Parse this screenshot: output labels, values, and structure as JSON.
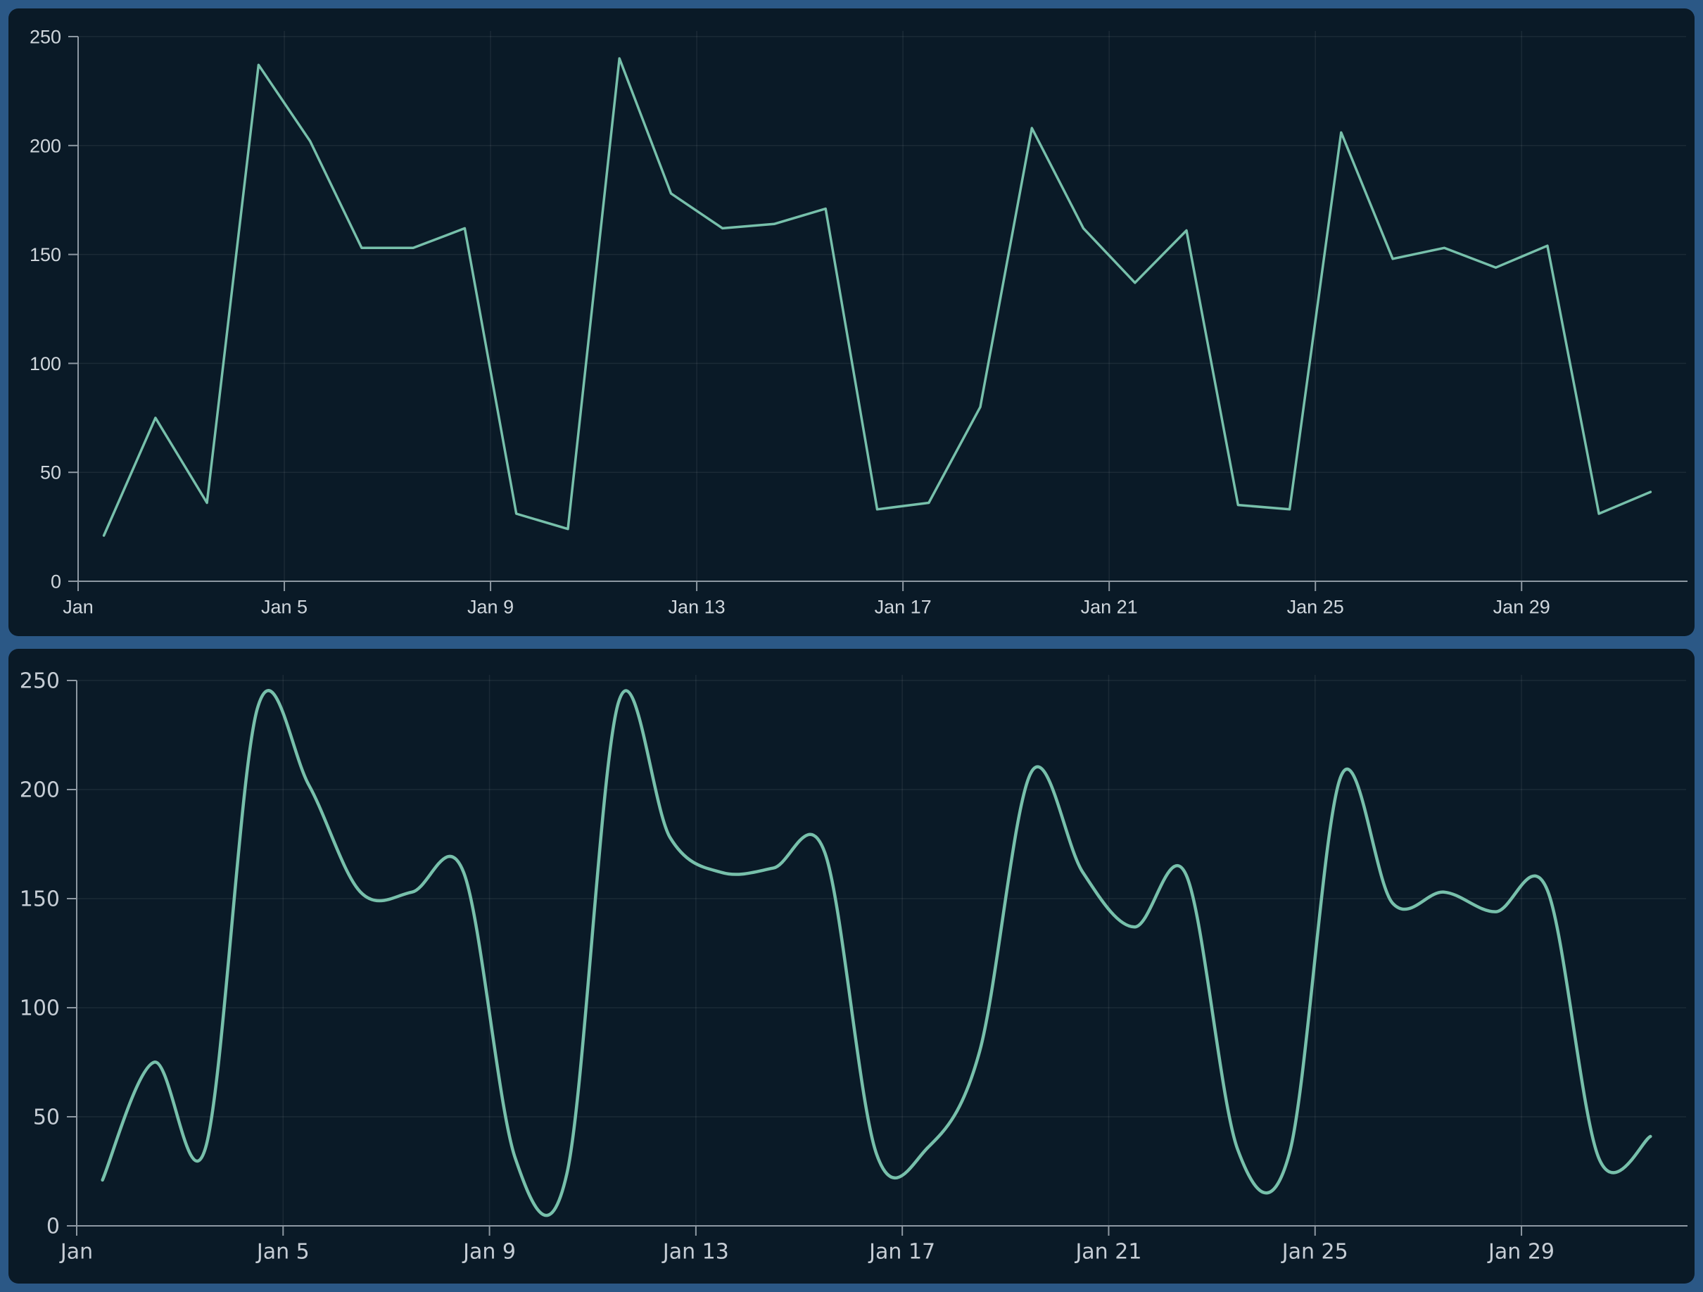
{
  "page": {
    "frame_color": "#2b5886",
    "card_background": "#0a1a27"
  },
  "chart_data": [
    {
      "type": "line",
      "interpolation": "linear",
      "title": "",
      "xlabel": "",
      "ylabel": "",
      "x": [
        "Jan 1",
        "Jan 2",
        "Jan 3",
        "Jan 4",
        "Jan 5",
        "Jan 6",
        "Jan 7",
        "Jan 8",
        "Jan 9",
        "Jan 10",
        "Jan 11",
        "Jan 12",
        "Jan 13",
        "Jan 14",
        "Jan 15",
        "Jan 16",
        "Jan 17",
        "Jan 18",
        "Jan 19",
        "Jan 20",
        "Jan 21",
        "Jan 22",
        "Jan 23",
        "Jan 24",
        "Jan 25",
        "Jan 26",
        "Jan 27",
        "Jan 28",
        "Jan 29",
        "Jan 30",
        "Jan 31"
      ],
      "values": [
        21,
        75,
        36,
        237,
        202,
        153,
        153,
        162,
        31,
        24,
        240,
        178,
        162,
        164,
        171,
        33,
        36,
        80,
        208,
        162,
        137,
        161,
        35,
        33,
        206,
        148,
        153,
        144,
        154,
        31,
        41
      ],
      "x_tick_days": [
        1,
        5,
        9,
        13,
        17,
        21,
        25,
        29
      ],
      "x_tick_labels": [
        "Jan",
        "Jan 5",
        "Jan 9",
        "Jan 13",
        "Jan 17",
        "Jan 21",
        "Jan 25",
        "Jan 29"
      ],
      "y_ticks": [
        0,
        50,
        100,
        150,
        200,
        250
      ],
      "ylim": [
        0,
        250
      ],
      "grid": true,
      "legend": null,
      "line_color": "#77c0ab",
      "axis_color": "#8e99a3",
      "grid_color": "rgba(255,255,255,0.07)",
      "label_color": "#cfd6dc"
    },
    {
      "type": "line",
      "interpolation": "smooth",
      "title": "",
      "xlabel": "",
      "ylabel": "",
      "x": [
        "Jan 1",
        "Jan 2",
        "Jan 3",
        "Jan 4",
        "Jan 5",
        "Jan 6",
        "Jan 7",
        "Jan 8",
        "Jan 9",
        "Jan 10",
        "Jan 11",
        "Jan 12",
        "Jan 13",
        "Jan 14",
        "Jan 15",
        "Jan 16",
        "Jan 17",
        "Jan 18",
        "Jan 19",
        "Jan 20",
        "Jan 21",
        "Jan 22",
        "Jan 23",
        "Jan 24",
        "Jan 25",
        "Jan 26",
        "Jan 27",
        "Jan 28",
        "Jan 29",
        "Jan 30",
        "Jan 31"
      ],
      "values": [
        21,
        75,
        36,
        237,
        202,
        153,
        153,
        162,
        31,
        24,
        240,
        178,
        162,
        164,
        171,
        33,
        36,
        80,
        208,
        162,
        137,
        161,
        35,
        33,
        206,
        148,
        153,
        144,
        154,
        31,
        41
      ],
      "x_tick_days": [
        1,
        5,
        9,
        13,
        17,
        21,
        25,
        29
      ],
      "x_tick_labels": [
        "Jan",
        "Jan 5",
        "Jan 9",
        "Jan 13",
        "Jan 17",
        "Jan 21",
        "Jan 25",
        "Jan 29"
      ],
      "y_ticks": [
        0,
        50,
        100,
        150,
        200,
        250
      ],
      "ylim": [
        0,
        250
      ],
      "grid": true,
      "legend": null,
      "line_color": "#77c0ab",
      "axis_color": "#8e99a3",
      "grid_color": "rgba(255,255,255,0.07)",
      "label_color": "#c6cdd5"
    }
  ]
}
